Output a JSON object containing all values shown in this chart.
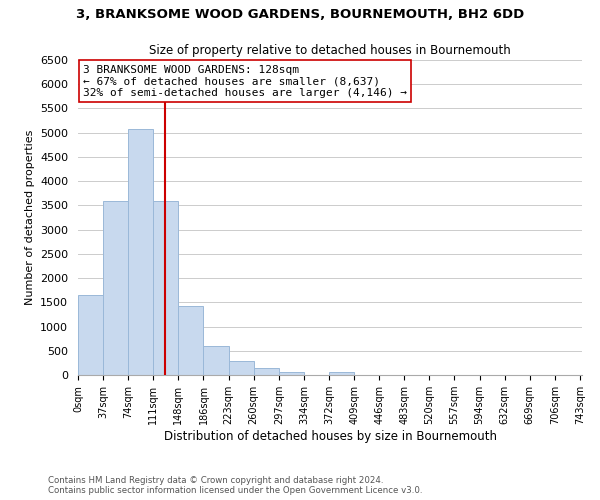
{
  "title": "3, BRANKSOME WOOD GARDENS, BOURNEMOUTH, BH2 6DD",
  "subtitle": "Size of property relative to detached houses in Bournemouth",
  "xlabel": "Distribution of detached houses by size in Bournemouth",
  "ylabel": "Number of detached properties",
  "bar_edges": [
    0,
    37,
    74,
    111,
    148,
    185,
    222,
    259,
    296,
    333,
    370,
    407,
    444,
    481,
    518,
    555,
    592,
    629,
    666,
    703,
    740
  ],
  "bar_heights": [
    1650,
    3600,
    5080,
    3600,
    1420,
    600,
    295,
    148,
    65,
    0,
    55,
    0,
    0,
    0,
    0,
    0,
    0,
    0,
    0,
    0
  ],
  "bar_color": "#c8d9ee",
  "bar_edge_color": "#9ab8d8",
  "vline_x": 128,
  "vline_color": "#cc0000",
  "ylim": [
    0,
    6500
  ],
  "yticks": [
    0,
    500,
    1000,
    1500,
    2000,
    2500,
    3000,
    3500,
    4000,
    4500,
    5000,
    5500,
    6000,
    6500
  ],
  "xlim": [
    0,
    743
  ],
  "xtick_positions": [
    0,
    37,
    74,
    111,
    148,
    185,
    222,
    259,
    296,
    333,
    370,
    407,
    444,
    481,
    518,
    555,
    592,
    629,
    666,
    703,
    740
  ],
  "xtick_labels": [
    "0sqm",
    "37sqm",
    "74sqm",
    "111sqm",
    "148sqm",
    "186sqm",
    "223sqm",
    "260sqm",
    "297sqm",
    "334sqm",
    "372sqm",
    "409sqm",
    "446sqm",
    "483sqm",
    "520sqm",
    "557sqm",
    "594sqm",
    "632sqm",
    "669sqm",
    "706sqm",
    "743sqm"
  ],
  "annotation_title": "3 BRANKSOME WOOD GARDENS: 128sqm",
  "annotation_line1": "← 67% of detached houses are smaller (8,637)",
  "annotation_line2": "32% of semi-detached houses are larger (4,146) →",
  "annotation_box_color": "#ffffff",
  "annotation_box_edge": "#cc0000",
  "footer_line1": "Contains HM Land Registry data © Crown copyright and database right 2024.",
  "footer_line2": "Contains public sector information licensed under the Open Government Licence v3.0.",
  "background_color": "#ffffff",
  "grid_color": "#cccccc"
}
